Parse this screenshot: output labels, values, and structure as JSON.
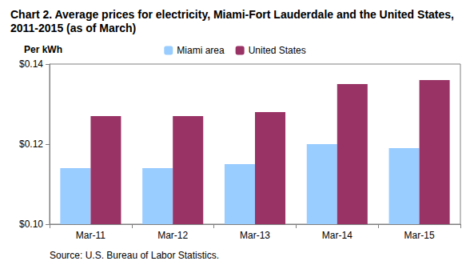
{
  "chart_data": {
    "type": "bar",
    "title": "Chart 2. Average prices for electricity, Miami-Fort Lauderdale and the United States, 2011-2015 (as of March)",
    "y_label": "Per kWh",
    "source": "Source: U.S. Bureau of Labor Statistics.",
    "categories": [
      "Mar-11",
      "Mar-12",
      "Mar-13",
      "Mar-14",
      "Mar-15"
    ],
    "series": [
      {
        "name": "Miami area",
        "color": "#99ccff",
        "values": [
          0.114,
          0.114,
          0.115,
          0.12,
          0.119
        ]
      },
      {
        "name": "United States",
        "color": "#993366",
        "values": [
          0.127,
          0.127,
          0.128,
          0.135,
          0.136
        ]
      }
    ],
    "ylim": [
      0.1,
      0.14
    ],
    "yticks": [
      {
        "value": 0.1,
        "label": "$0.10"
      },
      {
        "value": 0.12,
        "label": "$0.12"
      },
      {
        "value": 0.14,
        "label": "$0.14"
      }
    ],
    "grid": false,
    "legend": "top"
  }
}
